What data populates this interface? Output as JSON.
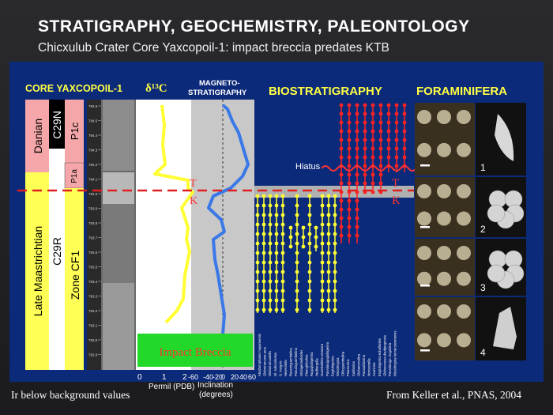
{
  "title": "STRATIGRAPHY, GEOCHEMISTRY, PALEONTOLOGY",
  "subtitle": "Chicxulub Crater Core Yaxcopoil-1: impact breccia predates KTB",
  "headers": {
    "core": "CORE YAXCOPOIL-1",
    "isotope": "δ¹³C",
    "magneto_1": "MAGNETO-",
    "magneto_2": "STRATIGRAPHY",
    "biostrat": "BIOSTRATIGRAPHY",
    "forams": "FORAMINIFERA"
  },
  "strat_column": {
    "stages": [
      "Danian",
      "Late Maastrichtian"
    ],
    "magnetochrons": [
      "C29N",
      "C29R"
    ],
    "zones": [
      "P1c",
      "P1a",
      "Zone CF1"
    ]
  },
  "labels": {
    "hiatus": "Hiatus",
    "t": "T",
    "k": "K",
    "impact_breccia": "Impact Breccia"
  },
  "axes": {
    "isotope_ticks": [
      "0",
      "1",
      "2"
    ],
    "isotope_label": "Permil (PDB)",
    "incl_ticks": [
      "-60",
      "-40",
      "-20",
      "0",
      "20",
      "40",
      "60"
    ],
    "incl_label_1": "Inclination",
    "incl_label_2": "(degrees)"
  },
  "core_depth_labels": [
    "794.6",
    "794.5",
    "794.4",
    "794.3",
    "794.2",
    "794.1",
    "794.0",
    "793.9",
    "793.8",
    "793.7",
    "793.6",
    "793.5",
    "793.4",
    "793.3",
    "793.2",
    "793.1",
    "793.0",
    "792.9"
  ],
  "species_names": [
    "Abathomphalus mayaroensis",
    "Globotruncana arca",
    "Globotruncanella",
    "Gl. subcarinatus",
    "G. insignis",
    "Heterohelix",
    "Racemiguembelina",
    "Pseudoguembelina",
    "Globigerinelloides",
    "Planoglobulina",
    "Rugoglobigerina",
    "Hedbergella",
    "Guembelitria cretacea",
    "Parvularugoglobigerina",
    "Eoglobigerina",
    "Woodringina",
    "Chiloguembelina",
    "Praemurica",
    "Subbotina",
    "Globanomalina",
    "Parasubbotina",
    "Morozovella",
    "Acarinina",
    "Eoglobigerina eobulloides",
    "Globoconusa daubjergensis",
    "Parvularugo. eugubina",
    "Woodringina hornerstownensis"
  ],
  "foram_numbers": [
    "1",
    "2",
    "3",
    "4"
  ],
  "captions": {
    "left": "Ir below background values",
    "right": "From Keller et al., PNAS, 2004"
  },
  "colors": {
    "panel_bg": "#0c2a7a",
    "isotope_line": "#ffff33",
    "magneto_line": "#3a78e8",
    "cretaceous_taxa": "#ffff33",
    "paleocene_taxa": "#ff2222",
    "danian": "#f4a6a8",
    "maastrichtian": "#ffff55",
    "breccia_box": "#22d828",
    "breccia_text": "#ff3333",
    "kt_boundary": "#e02020"
  }
}
